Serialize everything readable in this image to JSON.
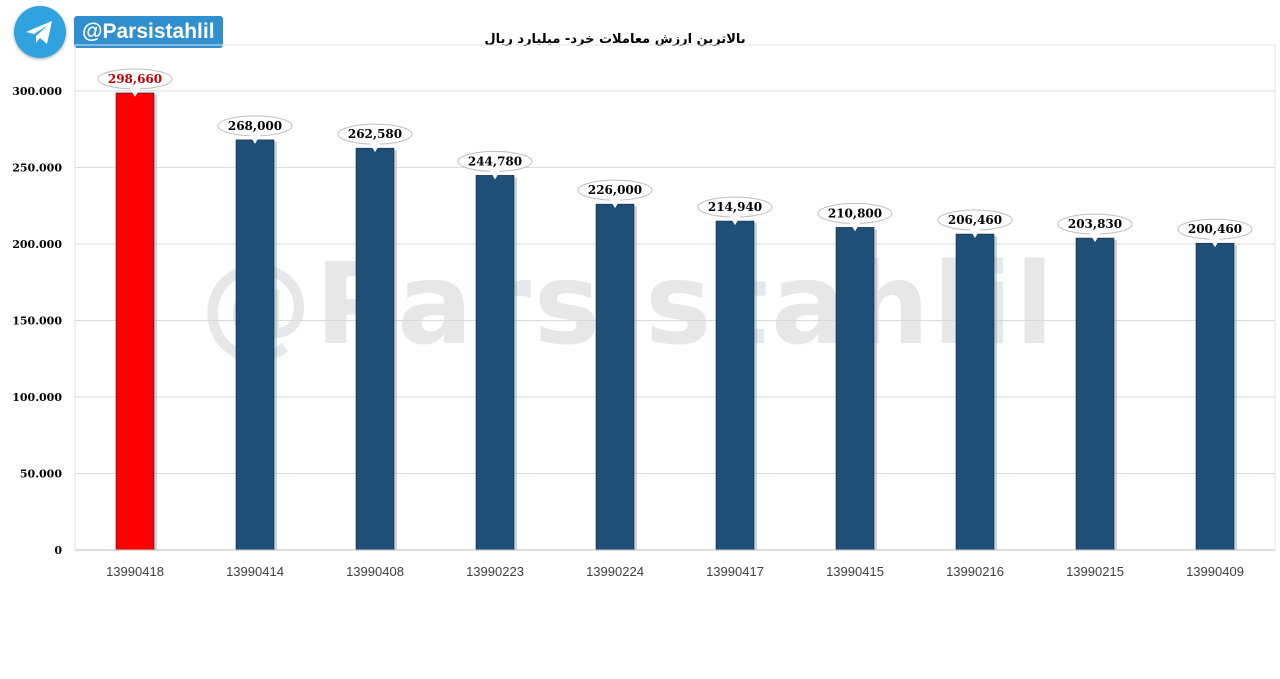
{
  "brand": {
    "handle": "@Parsistahlil",
    "logo_icon": "telegram-icon",
    "watermark": "@Parsistahlil"
  },
  "chart_data": {
    "type": "bar",
    "title": "بالاترین ارزش معاملات خرد- میلیارد ریال",
    "xlabel": "",
    "ylabel": "",
    "categories": [
      "13990418",
      "13990414",
      "13990408",
      "13990223",
      "13990224",
      "13990417",
      "13990415",
      "13990216",
      "13990215",
      "13990409"
    ],
    "values": [
      298660,
      268000,
      262580,
      244780,
      226000,
      214940,
      210800,
      206460,
      203830,
      200460
    ],
    "data_labels": [
      "298,660",
      "268,000",
      "262,580",
      "244,780",
      "226,000",
      "214,940",
      "210,800",
      "206,460",
      "203,830",
      "200,460"
    ],
    "ylim": [
      0,
      330000
    ],
    "yticks": [
      0,
      50000,
      100000,
      150000,
      200000,
      250000,
      300000
    ],
    "ytick_labels": [
      "0",
      "50.000",
      "100.000",
      "150.000",
      "200.000",
      "250.000",
      "300.000"
    ],
    "grid": true,
    "colors": {
      "highlight": "#ff0000",
      "bar": "#1f4e79",
      "highlight_label": "#c00000",
      "label": "#000000",
      "grid": "#d9d9d9"
    }
  }
}
